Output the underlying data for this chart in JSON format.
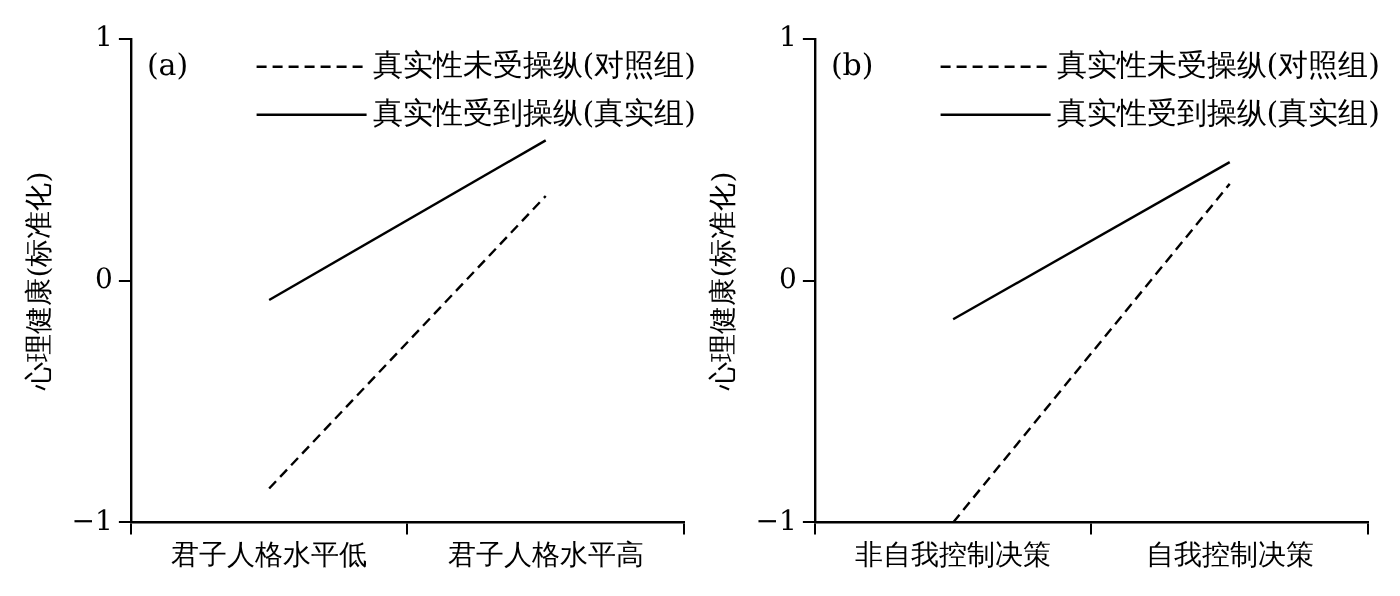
{
  "chart_data": [
    {
      "type": "line",
      "title": "(a)",
      "ylabel": "心理健康(标准化)",
      "categories": [
        "君子人格水平低",
        "君子人格水平高"
      ],
      "ylim": [
        -1,
        1
      ],
      "yticks": [
        -1,
        0,
        1
      ],
      "legend": "top right",
      "marker": "none",
      "series": [
        {
          "name": "真实性未受操纵(对照组)",
          "color": "#000000",
          "line_style": "dashed",
          "values": [
            -0.86,
            0.35
          ]
        },
        {
          "name": "真实性受到操纵(真实组)",
          "color": "#000000",
          "line_style": "solid",
          "values": [
            -0.08,
            0.58
          ]
        }
      ]
    },
    {
      "type": "line",
      "title": "(b)",
      "ylabel": "心理健康(标准化)",
      "categories": [
        "非自我控制决策",
        "自我控制决策"
      ],
      "ylim": [
        -1,
        1
      ],
      "yticks": [
        -1,
        0,
        1
      ],
      "legend": "top right",
      "marker": "none",
      "series": [
        {
          "name": "真实性未受操纵(对照组)",
          "color": "#000000",
          "line_style": "dashed",
          "values": [
            -1.0,
            0.4
          ]
        },
        {
          "name": "真实性受到操纵(真实组)",
          "color": "#000000",
          "line_style": "solid",
          "values": [
            -0.16,
            0.49
          ]
        }
      ]
    }
  ]
}
